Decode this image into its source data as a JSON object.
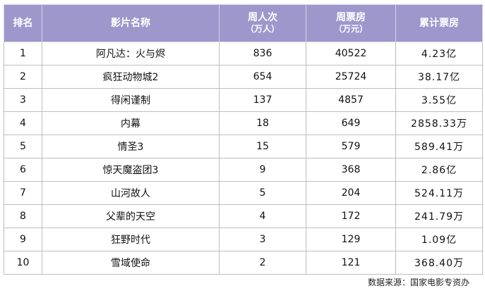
{
  "table": {
    "header": [
      [
        "排名"
      ],
      [
        "影片名称"
      ],
      [
        "周人次",
        "（万人）"
      ],
      [
        "周票房",
        "（万元）"
      ],
      [
        "累计票房"
      ]
    ],
    "rows": [
      [
        "1",
        "阿凡达：火与烬",
        "836",
        "40522",
        "4.23亿"
      ],
      [
        "2",
        "疯狂动物城2",
        "654",
        "25724",
        "38.17亿"
      ],
      [
        "3",
        "得闲谨制",
        "137",
        "4857",
        "3.55亿"
      ],
      [
        "4",
        "内幕",
        "18",
        "649",
        "2858.33万"
      ],
      [
        "5",
        "情圣3",
        "15",
        "579",
        "589.41万"
      ],
      [
        "6",
        "惊天魔盗团3",
        "9",
        "368",
        "2.86亿"
      ],
      [
        "7",
        "山河故人",
        "5",
        "204",
        "524.11万"
      ],
      [
        "8",
        "父辈的天空",
        "4",
        "172",
        "241.79万"
      ],
      [
        "9",
        "狂野时代",
        "3",
        "129",
        "1.09亿"
      ],
      [
        "10",
        "雪域使命",
        "2",
        "121",
        "368.40万"
      ]
    ]
  },
  "source": "数据来源：国家电影专资办"
}
